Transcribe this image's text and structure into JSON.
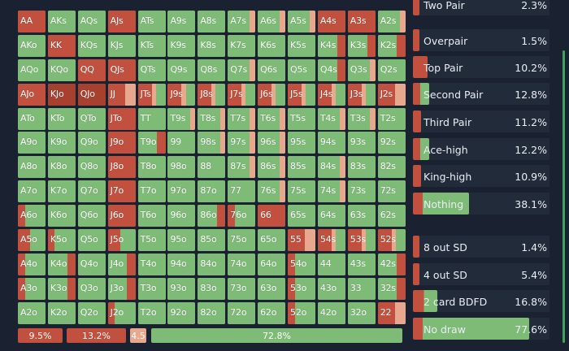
{
  "colors": {
    "red": "#c1503e",
    "dark_red": "#a8402f",
    "green": "#7dbb76",
    "peach": "#e8a88d",
    "background": "#1a2130",
    "panel_row": "#222b3a"
  },
  "grid": {
    "rows": [
      [
        "AA",
        "AKs",
        "AQs",
        "AJs",
        "ATs",
        "A9s",
        "A8s",
        "A7s",
        "A6s",
        "A5s",
        "A4s",
        "A3s",
        "A2s"
      ],
      [
        "AKo",
        "KK",
        "KQs",
        "KJs",
        "KTs",
        "K9s",
        "K8s",
        "K7s",
        "K6s",
        "K5s",
        "K4s",
        "K3s",
        "K2s"
      ],
      [
        "AQo",
        "KQo",
        "QQ",
        "QJs",
        "QTs",
        "Q9s",
        "Q8s",
        "Q7s",
        "Q6s",
        "Q5s",
        "Q4s",
        "Q3s",
        "Q2s"
      ],
      [
        "AJo",
        "KJo",
        "QJo",
        "JJ",
        "JTs",
        "J9s",
        "J8s",
        "J7s",
        "J6s",
        "J5s",
        "J4s",
        "J3s",
        "J2s"
      ],
      [
        "ATo",
        "KTo",
        "QTo",
        "JTo",
        "TT",
        "T9s",
        "T8s",
        "T7s",
        "T6s",
        "T5s",
        "T4s",
        "T3s",
        "T2s"
      ],
      [
        "A9o",
        "K9o",
        "Q9o",
        "J9o",
        "T9o",
        "99",
        "98s",
        "97s",
        "96s",
        "95s",
        "94s",
        "93s",
        "92s"
      ],
      [
        "A8o",
        "K8o",
        "Q8o",
        "J8o",
        "T8o",
        "98o",
        "88",
        "87s",
        "86s",
        "85s",
        "84s",
        "83s",
        "82s"
      ],
      [
        "A7o",
        "K7o",
        "Q7o",
        "J7o",
        "T7o",
        "97o",
        "87o",
        "77",
        "76s",
        "75s",
        "74s",
        "73s",
        "72s"
      ],
      [
        "A6o",
        "K6o",
        "Q6o",
        "J6o",
        "T6o",
        "96o",
        "86o",
        "76o",
        "66",
        "65s",
        "64s",
        "63s",
        "62s"
      ],
      [
        "A5o",
        "K5o",
        "Q5o",
        "J5o",
        "T5o",
        "95o",
        "85o",
        "75o",
        "65o",
        "55",
        "54s",
        "53s",
        "52s"
      ],
      [
        "A4o",
        "K4o",
        "Q4o",
        "J4o",
        "T4o",
        "94o",
        "84o",
        "74o",
        "64o",
        "54o",
        "44",
        "43s",
        "42s"
      ],
      [
        "A3o",
        "K3o",
        "Q3o",
        "J3o",
        "T3o",
        "93o",
        "83o",
        "73o",
        "63o",
        "53o",
        "43o",
        "33",
        "32s"
      ],
      [
        "A2o",
        "K2o",
        "Q2o",
        "J2o",
        "T2o",
        "92o",
        "82o",
        "72o",
        "62o",
        "52o",
        "42o",
        "32o",
        "22"
      ]
    ]
  },
  "footer": {
    "chips": [
      "9.5%",
      "13.2%",
      "4.5",
      "72.8%"
    ]
  },
  "panel": {
    "made_hands": [
      {
        "label": "Two Pair",
        "pct": "2.3%",
        "fill": 0.05
      },
      {
        "label": "Overpair",
        "pct": "1.5%",
        "fill": 0.04
      },
      {
        "label": "Top Pair",
        "pct": "10.2%",
        "fill": 0.11
      },
      {
        "label": "Second Pair",
        "pct": "12.8%",
        "fill": 0.12
      },
      {
        "label": "Third Pair",
        "pct": "11.2%",
        "fill": 0.06
      },
      {
        "label": "Ace-high",
        "pct": "12.2%",
        "fill": 0.12
      },
      {
        "label": "King-high",
        "pct": "10.9%",
        "fill": 0.06
      },
      {
        "label": "Nothing",
        "pct": "38.1%",
        "fill": 0.41
      }
    ],
    "draws": [
      {
        "label": "8 out SD",
        "pct": "1.4%",
        "fill": 0.02
      },
      {
        "label": "4 out SD",
        "pct": "5.4%",
        "fill": 0.03
      },
      {
        "label": "2 card BDFD",
        "pct": "16.8%",
        "fill": 0.18
      },
      {
        "label": "No draw",
        "pct": "77.6%",
        "fill": 0.85
      }
    ]
  }
}
